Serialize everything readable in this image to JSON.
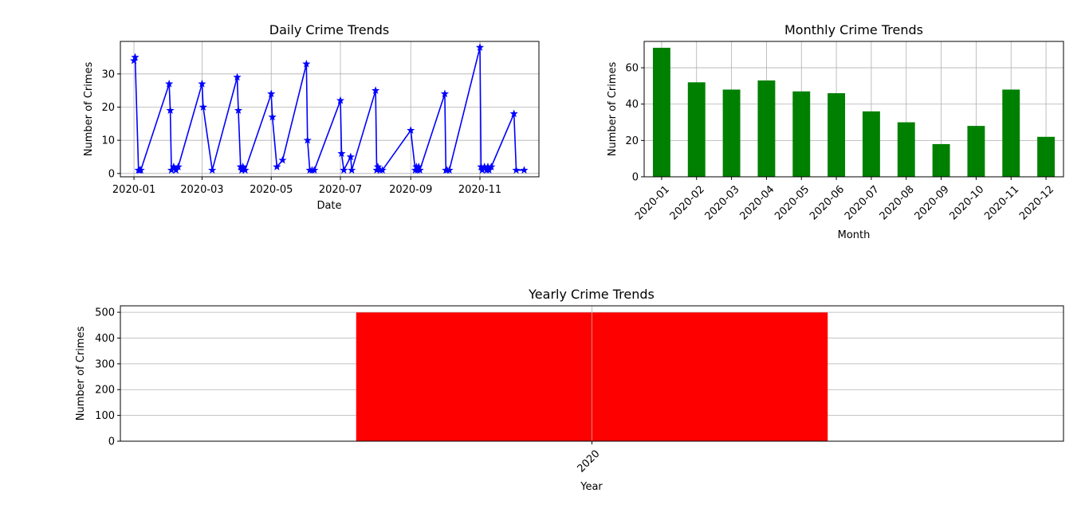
{
  "chart_data": [
    {
      "type": "line",
      "title": "Daily Crime Trends",
      "xlabel": "Date",
      "ylabel": "Number of Crimes",
      "color": "#0000ff",
      "marker": "star",
      "grid": true,
      "xlim": [
        "2019-12-20",
        "2020-12-23"
      ],
      "ylim": [
        -1,
        39.8
      ],
      "x_ticks": [
        "2020-01-01",
        "2020-03-01",
        "2020-05-01",
        "2020-07-01",
        "2020-09-01",
        "2020-11-01"
      ],
      "x_tick_labels": [
        "2020-01",
        "2020-03",
        "2020-05",
        "2020-07",
        "2020-09",
        "2020-11"
      ],
      "y_ticks": [
        0,
        10,
        20,
        30
      ],
      "points": [
        {
          "x": "2020-01-01",
          "y": 34
        },
        {
          "x": "2020-01-02",
          "y": 35
        },
        {
          "x": "2020-01-05",
          "y": 1
        },
        {
          "x": "2020-01-06",
          "y": 1
        },
        {
          "x": "2020-01-07",
          "y": 1
        },
        {
          "x": "2020-02-01",
          "y": 27
        },
        {
          "x": "2020-02-02",
          "y": 19
        },
        {
          "x": "2020-02-03",
          "y": 1
        },
        {
          "x": "2020-02-05",
          "y": 2
        },
        {
          "x": "2020-02-07",
          "y": 1
        },
        {
          "x": "2020-02-09",
          "y": 2
        },
        {
          "x": "2020-03-01",
          "y": 27
        },
        {
          "x": "2020-03-02",
          "y": 20
        },
        {
          "x": "2020-03-10",
          "y": 1
        },
        {
          "x": "2020-04-01",
          "y": 29
        },
        {
          "x": "2020-04-02",
          "y": 19
        },
        {
          "x": "2020-04-04",
          "y": 2
        },
        {
          "x": "2020-04-05",
          "y": 1
        },
        {
          "x": "2020-04-06",
          "y": 2
        },
        {
          "x": "2020-04-08",
          "y": 1
        },
        {
          "x": "2020-05-01",
          "y": 24
        },
        {
          "x": "2020-05-02",
          "y": 17
        },
        {
          "x": "2020-05-06",
          "y": 2
        },
        {
          "x": "2020-05-11",
          "y": 4
        },
        {
          "x": "2020-06-01",
          "y": 33
        },
        {
          "x": "2020-06-02",
          "y": 10
        },
        {
          "x": "2020-06-04",
          "y": 1
        },
        {
          "x": "2020-06-06",
          "y": 1
        },
        {
          "x": "2020-06-08",
          "y": 1
        },
        {
          "x": "2020-07-01",
          "y": 22
        },
        {
          "x": "2020-07-02",
          "y": 6
        },
        {
          "x": "2020-07-04",
          "y": 1
        },
        {
          "x": "2020-07-10",
          "y": 5
        },
        {
          "x": "2020-07-11",
          "y": 1
        },
        {
          "x": "2020-08-01",
          "y": 25
        },
        {
          "x": "2020-08-02",
          "y": 1
        },
        {
          "x": "2020-08-03",
          "y": 2
        },
        {
          "x": "2020-08-05",
          "y": 1
        },
        {
          "x": "2020-08-07",
          "y": 1
        },
        {
          "x": "2020-09-01",
          "y": 13
        },
        {
          "x": "2020-09-05",
          "y": 1
        },
        {
          "x": "2020-09-06",
          "y": 2
        },
        {
          "x": "2020-09-07",
          "y": 1
        },
        {
          "x": "2020-09-08",
          "y": 2
        },
        {
          "x": "2020-09-09",
          "y": 1
        },
        {
          "x": "2020-10-01",
          "y": 24
        },
        {
          "x": "2020-10-02",
          "y": 1
        },
        {
          "x": "2020-10-03",
          "y": 1
        },
        {
          "x": "2020-10-05",
          "y": 1
        },
        {
          "x": "2020-11-01",
          "y": 38
        },
        {
          "x": "2020-11-02",
          "y": 2
        },
        {
          "x": "2020-11-03",
          "y": 1
        },
        {
          "x": "2020-11-05",
          "y": 2
        },
        {
          "x": "2020-11-07",
          "y": 1
        },
        {
          "x": "2020-11-08",
          "y": 2
        },
        {
          "x": "2020-11-09",
          "y": 1
        },
        {
          "x": "2020-11-11",
          "y": 2
        },
        {
          "x": "2020-12-01",
          "y": 18
        },
        {
          "x": "2020-12-03",
          "y": 1
        },
        {
          "x": "2020-12-10",
          "y": 1
        }
      ]
    },
    {
      "type": "bar",
      "title": "Monthly Crime Trends",
      "xlabel": "Month",
      "ylabel": "Number of Crimes",
      "color": "#008000",
      "grid": true,
      "ylim": [
        0,
        74.5
      ],
      "y_ticks": [
        0,
        20,
        40,
        60
      ],
      "categories": [
        "2020-01",
        "2020-02",
        "2020-03",
        "2020-04",
        "2020-05",
        "2020-06",
        "2020-07",
        "2020-08",
        "2020-09",
        "2020-10",
        "2020-11",
        "2020-12"
      ],
      "values": [
        71,
        52,
        48,
        53,
        47,
        46,
        36,
        30,
        18,
        28,
        48,
        22
      ]
    },
    {
      "type": "bar",
      "title": "Yearly Crime Trends",
      "xlabel": "Year",
      "ylabel": "Number of Crimes",
      "color": "#ff0000",
      "grid": true,
      "ylim": [
        0,
        525
      ],
      "y_ticks": [
        0,
        100,
        200,
        300,
        400,
        500
      ],
      "categories": [
        "2020"
      ],
      "values": [
        499
      ]
    }
  ]
}
